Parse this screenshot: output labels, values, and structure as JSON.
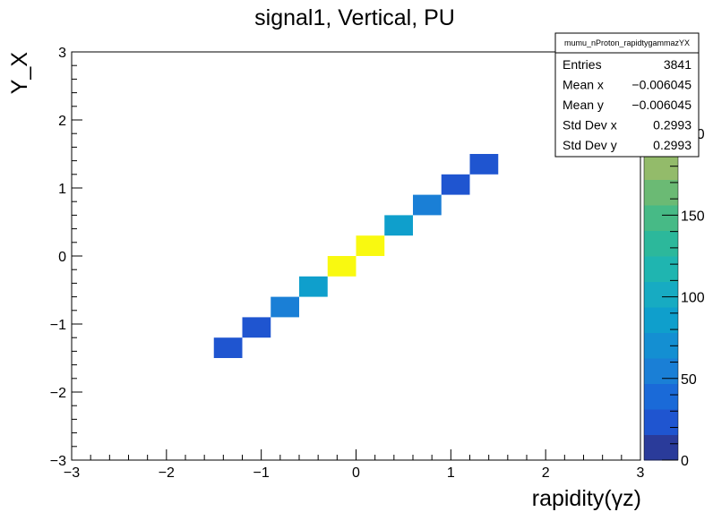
{
  "chart_data": {
    "type": "heatmap",
    "title": "signal1, Vertical, PU",
    "xlabel": "rapidity(γz)",
    "ylabel": "Y_X",
    "xlim": [
      -3,
      3
    ],
    "ylim": [
      -3,
      3
    ],
    "x_ticks": [
      "−3",
      "−2",
      "−1",
      "0",
      "1",
      "2",
      "3"
    ],
    "y_ticks": [
      "−3",
      "−2",
      "−1",
      "0",
      "1",
      "2",
      "3"
    ],
    "bin_width": 0.3,
    "cells": [
      {
        "x": -1.35,
        "y": -1.35,
        "value": 25
      },
      {
        "x": -1.05,
        "y": -1.05,
        "value": 25
      },
      {
        "x": -0.75,
        "y": -0.75,
        "value": 50
      },
      {
        "x": -0.45,
        "y": -0.45,
        "value": 85
      },
      {
        "x": -0.15,
        "y": -0.15,
        "value": 250
      },
      {
        "x": 0.15,
        "y": 0.15,
        "value": 250
      },
      {
        "x": 0.45,
        "y": 0.45,
        "value": 85
      },
      {
        "x": 0.75,
        "y": 0.75,
        "value": 50
      },
      {
        "x": 1.05,
        "y": 1.05,
        "value": 25
      },
      {
        "x": 1.35,
        "y": 1.35,
        "value": 25
      }
    ],
    "z_range": [
      0,
      250
    ],
    "z_ticks": [
      "0",
      "50",
      "100",
      "150",
      "200"
    ],
    "palette": [
      "#2a3b9a",
      "#1f55d0",
      "#1a6ad8",
      "#1a7fd6",
      "#148fd2",
      "#0f9fcc",
      "#17abc2",
      "#1fb5b0",
      "#2cb89b",
      "#47ba86",
      "#6bba74",
      "#93bb6a",
      "#b9bb5c",
      "#d8b84a",
      "#eed23a",
      "#f9f910"
    ],
    "stats": {
      "name": "mumu_nProton_rapidtygammazYX",
      "rows": [
        {
          "label": "Entries",
          "value": "3841"
        },
        {
          "label": "Mean x",
          "value": "−0.006045"
        },
        {
          "label": "Mean y",
          "value": "−0.006045"
        },
        {
          "label": "Std Dev x",
          "value": "0.2993"
        },
        {
          "label": "Std Dev y",
          "value": "0.2993"
        }
      ]
    }
  }
}
